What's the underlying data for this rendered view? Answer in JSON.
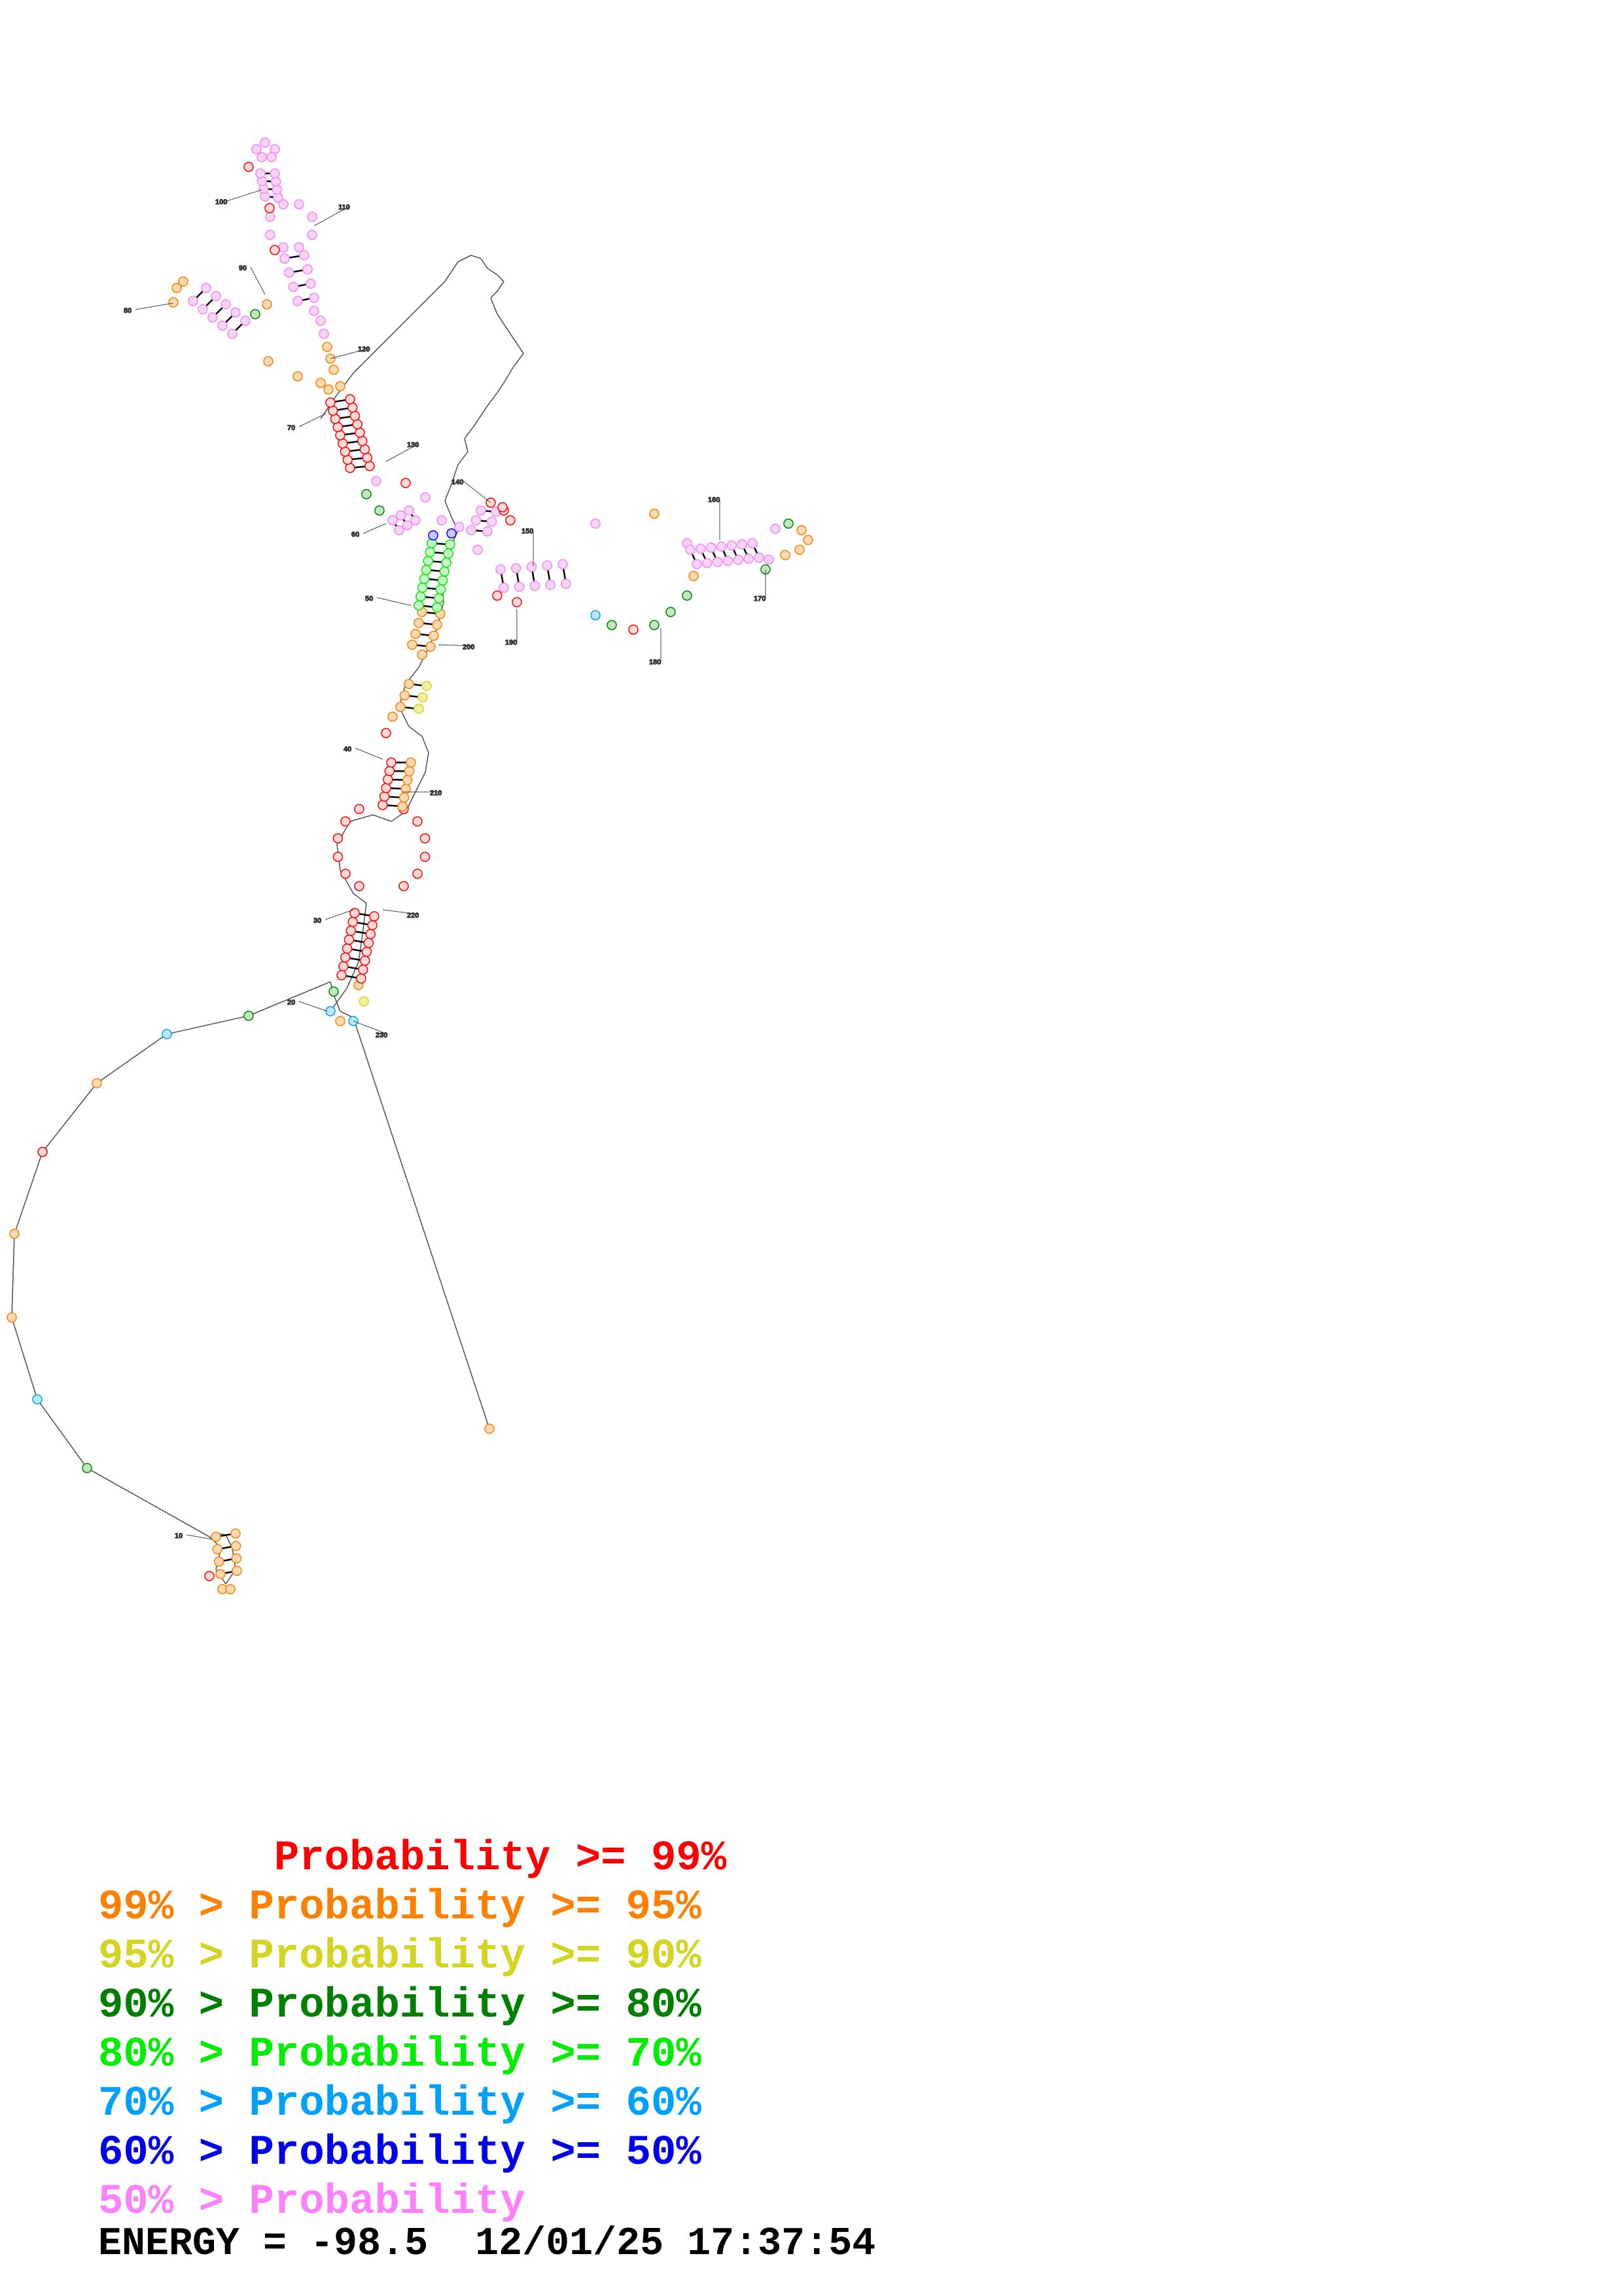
{
  "legend": [
    {
      "prefix": "       ",
      "text": "Probability >= 99%",
      "color": "#ff0000"
    },
    {
      "prefix": "99% > ",
      "text": "Probability >= 95%",
      "color": "#ff8000"
    },
    {
      "prefix": "95% > ",
      "text": "Probability >= 90%",
      "color": "#d4d422"
    },
    {
      "prefix": "90% > ",
      "text": "Probability >= 80%",
      "color": "#008000"
    },
    {
      "prefix": "80% > ",
      "text": "Probability >= 70%",
      "color": "#00ee00"
    },
    {
      "prefix": "70% > ",
      "text": "Probability >= 60%",
      "color": "#00a0ff"
    },
    {
      "prefix": "60% > ",
      "text": "Probability >= 50%",
      "color": "#0000ee"
    },
    {
      "prefix": "50% > ",
      "text": "Probability",
      "color": "#ff80ff"
    }
  ],
  "energy_label": "ENERGY = -98.5",
  "timestamp": "12/01/25 17:37:54",
  "position_labels": [
    "10",
    "20",
    "30",
    "40",
    "50",
    "60",
    "70",
    "80",
    "90",
    "100",
    "110",
    "120",
    "130",
    "140",
    "150",
    "160",
    "170",
    "180",
    "190",
    "200",
    "210",
    "220",
    "230"
  ]
}
